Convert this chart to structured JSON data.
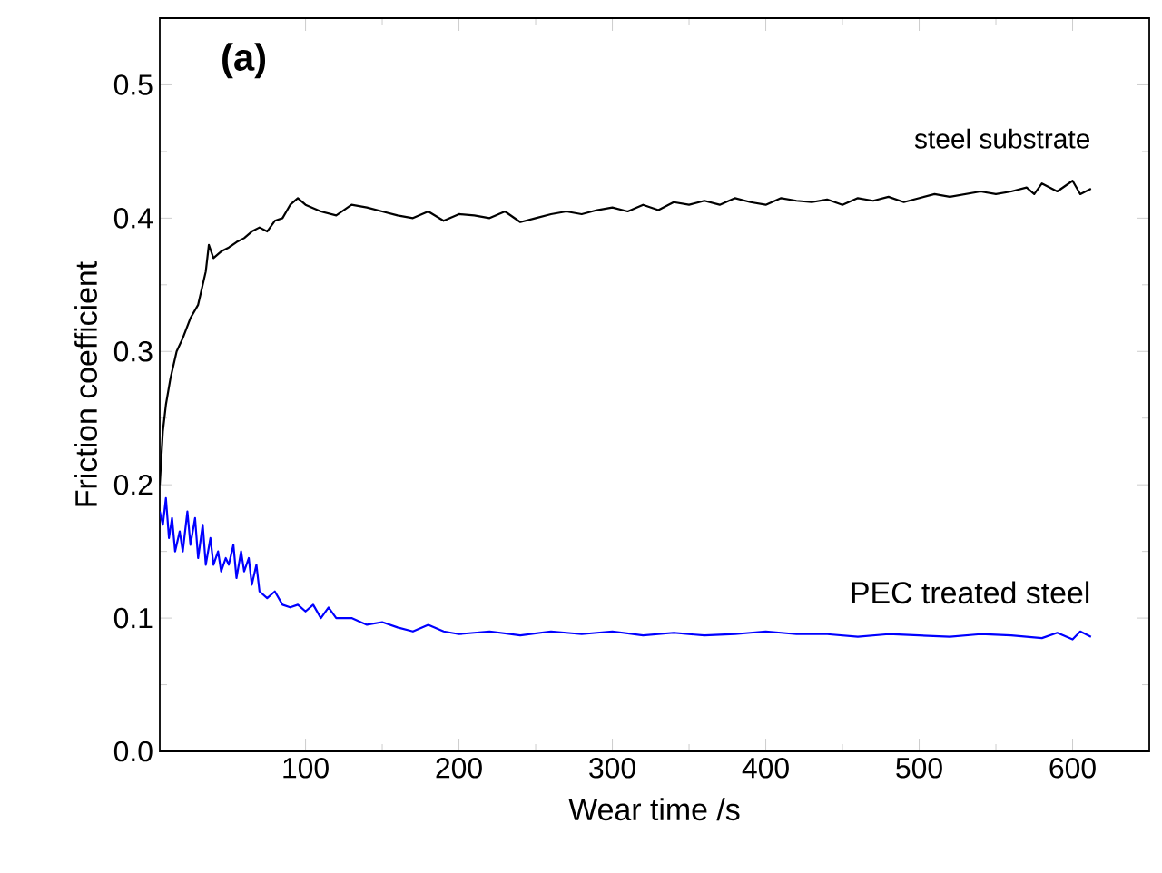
{
  "chart_data": {
    "type": "line",
    "xlabel": "Wear time /s",
    "ylabel": "Friction coefficient",
    "annotations": [
      "(a)"
    ],
    "xlim": [
      5,
      650
    ],
    "ylim": [
      0,
      0.55
    ],
    "xticks": [
      100,
      200,
      300,
      400,
      500,
      600
    ],
    "yticks": [
      {
        "value": 0,
        "label": "0.0"
      },
      {
        "value": 0.1,
        "label": "0.1"
      },
      {
        "value": 0.2,
        "label": "0.2"
      },
      {
        "value": 0.3,
        "label": "0.3"
      },
      {
        "value": 0.4,
        "label": "0.4"
      },
      {
        "value": 0.5,
        "label": "0.5"
      }
    ],
    "grid": false,
    "legend": false,
    "marker": "none",
    "line_style": "solid",
    "series": [
      {
        "name": "steel substrate",
        "color": "#000000",
        "x": [
          5,
          7,
          9,
          12,
          16,
          20,
          25,
          30,
          33,
          35,
          37,
          40,
          45,
          50,
          55,
          60,
          65,
          70,
          75,
          80,
          85,
          90,
          95,
          100,
          110,
          120,
          130,
          140,
          150,
          160,
          170,
          180,
          190,
          200,
          210,
          220,
          230,
          240,
          250,
          260,
          270,
          280,
          290,
          300,
          310,
          320,
          330,
          340,
          350,
          360,
          370,
          380,
          390,
          400,
          410,
          420,
          430,
          440,
          450,
          460,
          470,
          480,
          490,
          500,
          510,
          520,
          530,
          540,
          550,
          560,
          570,
          575,
          580,
          590,
          600,
          605,
          612
        ],
        "values": [
          0.2,
          0.24,
          0.26,
          0.28,
          0.3,
          0.31,
          0.325,
          0.335,
          0.35,
          0.36,
          0.38,
          0.37,
          0.375,
          0.378,
          0.382,
          0.385,
          0.39,
          0.393,
          0.39,
          0.398,
          0.4,
          0.41,
          0.415,
          0.41,
          0.405,
          0.402,
          0.41,
          0.408,
          0.405,
          0.402,
          0.4,
          0.405,
          0.398,
          0.403,
          0.402,
          0.4,
          0.405,
          0.397,
          0.4,
          0.403,
          0.405,
          0.403,
          0.406,
          0.408,
          0.405,
          0.41,
          0.406,
          0.412,
          0.41,
          0.413,
          0.41,
          0.415,
          0.412,
          0.41,
          0.415,
          0.413,
          0.412,
          0.414,
          0.41,
          0.415,
          0.413,
          0.416,
          0.412,
          0.415,
          0.418,
          0.416,
          0.418,
          0.42,
          0.418,
          0.42,
          0.423,
          0.418,
          0.426,
          0.42,
          0.428,
          0.418,
          0.422
        ]
      },
      {
        "name": "PEC treated steel",
        "color": "#0000ff",
        "x": [
          5,
          7,
          9,
          11,
          13,
          15,
          18,
          20,
          23,
          25,
          28,
          30,
          33,
          35,
          38,
          40,
          43,
          45,
          48,
          50,
          53,
          55,
          58,
          60,
          63,
          65,
          68,
          70,
          75,
          80,
          85,
          90,
          95,
          100,
          105,
          110,
          115,
          120,
          130,
          140,
          150,
          160,
          170,
          180,
          190,
          200,
          220,
          240,
          260,
          280,
          300,
          320,
          340,
          360,
          380,
          400,
          420,
          440,
          460,
          480,
          500,
          520,
          540,
          560,
          580,
          590,
          600,
          605,
          612
        ],
        "values": [
          0.18,
          0.17,
          0.19,
          0.16,
          0.175,
          0.15,
          0.165,
          0.15,
          0.18,
          0.155,
          0.175,
          0.145,
          0.17,
          0.14,
          0.16,
          0.14,
          0.15,
          0.135,
          0.145,
          0.14,
          0.155,
          0.13,
          0.15,
          0.135,
          0.145,
          0.125,
          0.14,
          0.12,
          0.115,
          0.12,
          0.11,
          0.108,
          0.11,
          0.105,
          0.11,
          0.1,
          0.108,
          0.1,
          0.1,
          0.095,
          0.097,
          0.093,
          0.09,
          0.095,
          0.09,
          0.088,
          0.09,
          0.087,
          0.09,
          0.088,
          0.09,
          0.087,
          0.089,
          0.087,
          0.088,
          0.09,
          0.088,
          0.088,
          0.086,
          0.088,
          0.087,
          0.086,
          0.088,
          0.087,
          0.085,
          0.089,
          0.084,
          0.09,
          0.086
        ]
      }
    ]
  }
}
